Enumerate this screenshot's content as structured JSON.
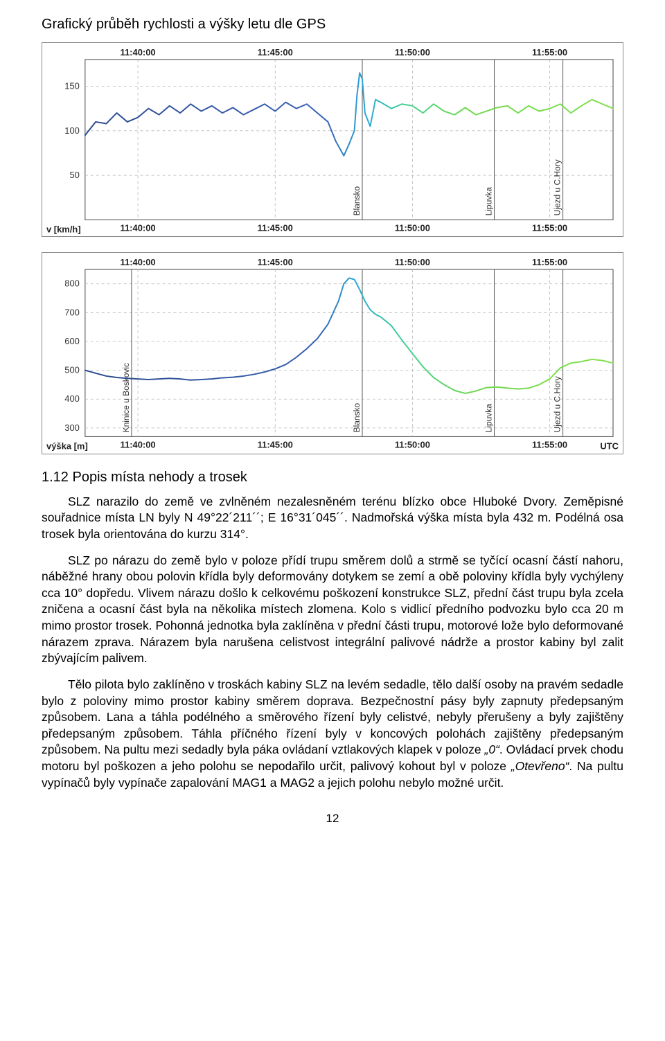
{
  "doc_title": "Grafický průběh rychlosti a výšky letu dle GPS",
  "section_title": "1.12   Popis místa nehody a trosek",
  "paragraphs": {
    "p1a": "SLZ narazilo do země ve zvlněném nezalesněném terénu blízko obce Hluboké Dvory. Zeměpisné souřadnice místa LN byly N 49°22´211´´; E 16°31´045´´. Nadmořská výška místa byla 432 m. Podélná osa trosek byla orientována do kurzu 314°.",
    "p1b": "SLZ po nárazu do země bylo v poloze přídí trupu směrem dolů a strmě se tyčící ocasní částí nahoru, náběžné hrany obou polovin křídla byly deformovány dotykem se zemí a obě poloviny křídla byly vychýleny cca 10° dopředu. Vlivem nárazu došlo k celkovému poškození konstrukce SLZ, přední část trupu byla zcela zničena a ocasní část byla na několika místech zlomena. Kolo s vidlicí předního podvozku bylo cca 20 m mimo prostor trosek. Pohonná jednotka byla zaklíněna v přední části trupu, motorové lože bylo deformované nárazem zprava. Nárazem byla narušena celistvost integrální palivové nádrže a prostor kabiny byl zalit zbývajícím palivem.",
    "p2a": "Tělo pilota bylo zaklíněno v troskách kabiny SLZ na levém sedadle, tělo další osoby na pravém sedadle bylo z poloviny mimo prostor kabiny směrem doprava. Bezpečnostní pásy byly zapnuty předepsaným způsobem. Lana a táhla podélného a směrového řízení byly celistvé, nebyly přerušeny a byly zajištěny předepsaným způsobem. Táhla příčného řízení byly v koncových polohách zajištěny předepsaným způsobem. Na pultu mezi sedadly byla páka ovládaní vztlakových klapek v poloze ",
    "p2_zero": "„0“",
    "p2b": ". Ovládací prvek chodu motoru byl poškozen a jeho polohu se nepodařilo určit, palivový kohout byl v poloze ",
    "p2_open": "„Otevřeno“",
    "p2c": ". Na pultu vypínačů byly vypínače zapalování MAG1 a MAG2 a jejich polohu nebylo možné určit."
  },
  "page_number": "12",
  "chart_speed": {
    "type": "line",
    "x_ticks": [
      "11:40:00",
      "11:45:00",
      "11:50:00",
      "11:55:00"
    ],
    "y_ticks": [
      50,
      100,
      150
    ],
    "y_label": "v [km/h]",
    "ylim": [
      0,
      180
    ],
    "grid_color": "#b6b6b6",
    "axis_color": "#444444",
    "tick_font": 13,
    "line_width": 2,
    "markers": [
      {
        "label": "Blansko",
        "pos": 0.525
      },
      {
        "label": "Lipuvka",
        "pos": 0.775
      },
      {
        "label": "Ujezd u C.Hory",
        "pos": 0.905
      }
    ],
    "series": {
      "colors_stops": [
        {
          "t": 0.0,
          "c": "#2b4a8b"
        },
        {
          "t": 0.46,
          "c": "#3a63b8"
        },
        {
          "t": 0.53,
          "c": "#2aa7d8"
        },
        {
          "t": 0.6,
          "c": "#3fcf97"
        },
        {
          "t": 0.72,
          "c": "#6fd94e"
        },
        {
          "t": 1.0,
          "c": "#7fe04a"
        }
      ],
      "points": [
        [
          0.0,
          95
        ],
        [
          0.02,
          110
        ],
        [
          0.04,
          108
        ],
        [
          0.06,
          120
        ],
        [
          0.08,
          110
        ],
        [
          0.1,
          115
        ],
        [
          0.12,
          125
        ],
        [
          0.14,
          118
        ],
        [
          0.16,
          128
        ],
        [
          0.18,
          120
        ],
        [
          0.2,
          130
        ],
        [
          0.22,
          122
        ],
        [
          0.24,
          128
        ],
        [
          0.26,
          120
        ],
        [
          0.28,
          126
        ],
        [
          0.3,
          118
        ],
        [
          0.32,
          124
        ],
        [
          0.34,
          130
        ],
        [
          0.36,
          122
        ],
        [
          0.38,
          132
        ],
        [
          0.4,
          125
        ],
        [
          0.42,
          130
        ],
        [
          0.44,
          120
        ],
        [
          0.46,
          110
        ],
        [
          0.475,
          88
        ],
        [
          0.49,
          72
        ],
        [
          0.5,
          85
        ],
        [
          0.51,
          100
        ],
        [
          0.515,
          140
        ],
        [
          0.52,
          165
        ],
        [
          0.525,
          158
        ],
        [
          0.53,
          120
        ],
        [
          0.54,
          105
        ],
        [
          0.55,
          135
        ],
        [
          0.56,
          132
        ],
        [
          0.58,
          125
        ],
        [
          0.6,
          130
        ],
        [
          0.62,
          128
        ],
        [
          0.64,
          120
        ],
        [
          0.66,
          130
        ],
        [
          0.68,
          122
        ],
        [
          0.7,
          118
        ],
        [
          0.72,
          126
        ],
        [
          0.74,
          118
        ],
        [
          0.76,
          122
        ],
        [
          0.78,
          126
        ],
        [
          0.8,
          128
        ],
        [
          0.82,
          120
        ],
        [
          0.84,
          128
        ],
        [
          0.86,
          122
        ],
        [
          0.88,
          125
        ],
        [
          0.9,
          130
        ],
        [
          0.92,
          120
        ],
        [
          0.94,
          128
        ],
        [
          0.96,
          135
        ],
        [
          0.98,
          130
        ],
        [
          1.0,
          125
        ]
      ]
    }
  },
  "chart_alt": {
    "type": "line",
    "x_ticks": [
      "11:40:00",
      "11:45:00",
      "11:50:00",
      "11:55:00"
    ],
    "y_ticks": [
      300,
      400,
      500,
      600,
      700,
      800
    ],
    "y_label": "výška [m]",
    "x_label_right": "UTC",
    "ylim": [
      270,
      850
    ],
    "grid_color": "#b6b6b6",
    "axis_color": "#444444",
    "tick_font": 13,
    "line_width": 2,
    "markers": [
      {
        "label": "Kninice u Boskovic",
        "pos": 0.088
      },
      {
        "label": "Blansko",
        "pos": 0.525
      },
      {
        "label": "Lipuvka",
        "pos": 0.775
      },
      {
        "label": "Ujezd u C.Hory",
        "pos": 0.905
      }
    ],
    "series": {
      "colors_stops": [
        {
          "t": 0.0,
          "c": "#2b4a8b"
        },
        {
          "t": 0.44,
          "c": "#3560b2"
        },
        {
          "t": 0.51,
          "c": "#2aa7d8"
        },
        {
          "t": 0.6,
          "c": "#3fcf97"
        },
        {
          "t": 0.74,
          "c": "#70d84d"
        },
        {
          "t": 1.0,
          "c": "#82e24d"
        }
      ],
      "points": [
        [
          0.0,
          500
        ],
        [
          0.02,
          490
        ],
        [
          0.04,
          480
        ],
        [
          0.06,
          475
        ],
        [
          0.08,
          472
        ],
        [
          0.1,
          470
        ],
        [
          0.12,
          468
        ],
        [
          0.14,
          470
        ],
        [
          0.16,
          472
        ],
        [
          0.18,
          470
        ],
        [
          0.2,
          466
        ],
        [
          0.22,
          468
        ],
        [
          0.24,
          470
        ],
        [
          0.26,
          474
        ],
        [
          0.28,
          476
        ],
        [
          0.3,
          480
        ],
        [
          0.32,
          486
        ],
        [
          0.34,
          494
        ],
        [
          0.36,
          505
        ],
        [
          0.38,
          520
        ],
        [
          0.4,
          545
        ],
        [
          0.42,
          575
        ],
        [
          0.44,
          610
        ],
        [
          0.46,
          660
        ],
        [
          0.48,
          740
        ],
        [
          0.49,
          800
        ],
        [
          0.5,
          820
        ],
        [
          0.51,
          815
        ],
        [
          0.52,
          780
        ],
        [
          0.53,
          740
        ],
        [
          0.54,
          710
        ],
        [
          0.55,
          694
        ],
        [
          0.56,
          685
        ],
        [
          0.58,
          655
        ],
        [
          0.6,
          605
        ],
        [
          0.62,
          558
        ],
        [
          0.64,
          512
        ],
        [
          0.66,
          475
        ],
        [
          0.68,
          450
        ],
        [
          0.7,
          430
        ],
        [
          0.72,
          420
        ],
        [
          0.74,
          428
        ],
        [
          0.76,
          440
        ],
        [
          0.78,
          442
        ],
        [
          0.8,
          438
        ],
        [
          0.82,
          435
        ],
        [
          0.84,
          438
        ],
        [
          0.86,
          450
        ],
        [
          0.88,
          470
        ],
        [
          0.9,
          508
        ],
        [
          0.92,
          525
        ],
        [
          0.94,
          530
        ],
        [
          0.96,
          538
        ],
        [
          0.98,
          534
        ],
        [
          1.0,
          525
        ]
      ]
    }
  }
}
